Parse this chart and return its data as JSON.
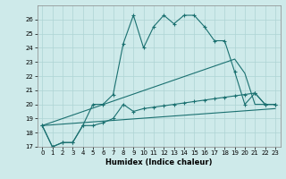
{
  "background_color": "#ceeaea",
  "grid_color": "#aed4d4",
  "line_color": "#1a7070",
  "xlabel": "Humidex (Indice chaleur)",
  "ylim": [
    17,
    27
  ],
  "xlim": [
    -0.5,
    23.5
  ],
  "yticks": [
    17,
    18,
    19,
    20,
    21,
    22,
    23,
    24,
    25,
    26
  ],
  "xticks": [
    0,
    1,
    2,
    3,
    4,
    5,
    6,
    7,
    8,
    9,
    10,
    11,
    12,
    13,
    14,
    15,
    16,
    17,
    18,
    19,
    20,
    21,
    22,
    23
  ],
  "series": [
    {
      "x": [
        0,
        1,
        2,
        3,
        4,
        5,
        6,
        7,
        8,
        9,
        10,
        11,
        12,
        13,
        14,
        15,
        16,
        17,
        18,
        19,
        20,
        21,
        22,
        23
      ],
      "y": [
        18.5,
        17.0,
        17.3,
        17.3,
        18.5,
        20.0,
        20.0,
        20.7,
        24.3,
        26.3,
        24.0,
        25.5,
        26.3,
        25.7,
        26.3,
        26.3,
        25.5,
        24.5,
        24.5,
        22.3,
        20.0,
        20.8,
        20.0,
        20.0
      ],
      "marker": true
    },
    {
      "x": [
        0,
        1,
        2,
        3,
        4,
        5,
        6,
        7,
        8,
        9,
        10,
        11,
        12,
        13,
        14,
        15,
        16,
        17,
        18,
        19,
        20,
        21,
        22,
        23
      ],
      "y": [
        18.5,
        17.0,
        17.3,
        17.3,
        18.5,
        18.5,
        18.7,
        19.0,
        20.0,
        19.5,
        19.7,
        19.8,
        19.9,
        20.0,
        20.1,
        20.2,
        20.3,
        20.4,
        20.5,
        20.6,
        20.7,
        20.8,
        20.0,
        20.0
      ],
      "marker": true
    },
    {
      "x": [
        0,
        19,
        20,
        21,
        22,
        23
      ],
      "y": [
        18.5,
        23.2,
        22.2,
        20.0,
        20.0,
        20.0
      ],
      "marker": false
    },
    {
      "x": [
        0,
        23
      ],
      "y": [
        18.5,
        19.7
      ],
      "marker": false
    }
  ]
}
